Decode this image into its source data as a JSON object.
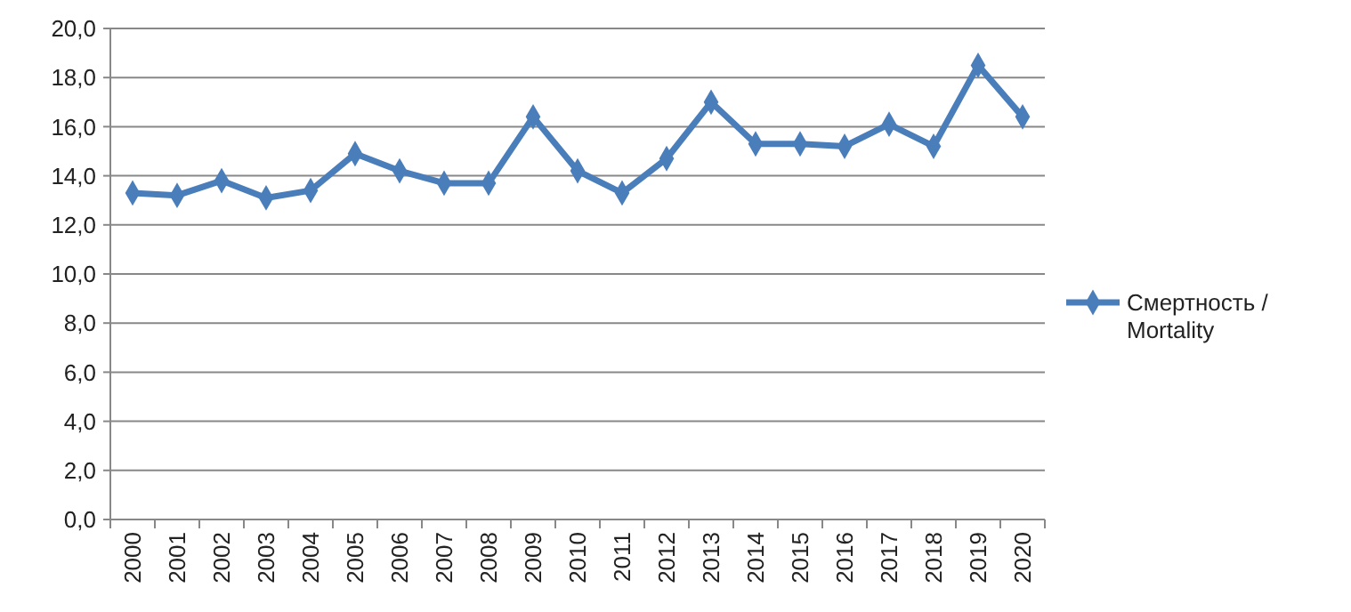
{
  "chart_data": {
    "type": "line",
    "categories": [
      "2000",
      "2001",
      "2002",
      "2003",
      "2004",
      "2005",
      "2006",
      "2007",
      "2008",
      "2009",
      "2010",
      "2011",
      "2012",
      "2013",
      "2014",
      "2015",
      "2016",
      "2017",
      "2018",
      "2019",
      "2020"
    ],
    "series": [
      {
        "name": "Смертность / Mortality",
        "color": "#4a7ebb",
        "values": [
          13.3,
          13.2,
          13.8,
          13.1,
          13.4,
          14.9,
          14.2,
          13.7,
          13.7,
          16.4,
          14.2,
          13.3,
          14.7,
          17.0,
          15.3,
          15.3,
          15.2,
          16.1,
          15.2,
          18.5,
          16.4
        ]
      }
    ],
    "ylim": [
      0,
      20
    ],
    "yticks": [
      {
        "value": 0,
        "label": "0,0"
      },
      {
        "value": 2,
        "label": "2,0"
      },
      {
        "value": 4,
        "label": "4,0"
      },
      {
        "value": 6,
        "label": "6,0"
      },
      {
        "value": 8,
        "label": "8,0"
      },
      {
        "value": 10,
        "label": "10,0"
      },
      {
        "value": 12,
        "label": "12,0"
      },
      {
        "value": 14,
        "label": "14,0"
      },
      {
        "value": 16,
        "label": "16,0"
      },
      {
        "value": 18,
        "label": "18,0"
      },
      {
        "value": 20,
        "label": "20,0"
      }
    ],
    "grid": "y",
    "legend": "right",
    "marker": "diamond",
    "line_style": "solid"
  }
}
